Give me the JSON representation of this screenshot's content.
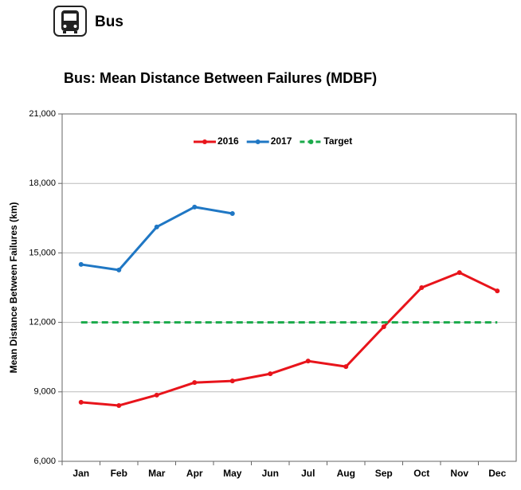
{
  "header": {
    "title": "Bus"
  },
  "chart_data": {
    "type": "line",
    "title": "Bus: Mean Distance Between Failures (MDBF)",
    "y_label": "Mean Distance Between Failures (km)",
    "categories": [
      "Jan",
      "Feb",
      "Mar",
      "Apr",
      "May",
      "Jun",
      "Jul",
      "Aug",
      "Sep",
      "Oct",
      "Nov",
      "Dec"
    ],
    "series": [
      {
        "name": "2016",
        "color": "#e8141b",
        "line_style": "solid",
        "markers": true,
        "values": [
          8550,
          8410,
          8860,
          9400,
          9470,
          9780,
          10330,
          10090,
          11810,
          13500,
          14150,
          13360
        ]
      },
      {
        "name": "2017",
        "color": "#1f77c4",
        "line_style": "solid",
        "markers": true,
        "values": [
          14500,
          14260,
          16120,
          16980,
          16700,
          null,
          null,
          null,
          null,
          null,
          null,
          null
        ]
      },
      {
        "name": "Target",
        "color": "#1aaa4a",
        "line_style": "dashed",
        "markers": false,
        "values": [
          12000,
          12000,
          12000,
          12000,
          12000,
          12000,
          12000,
          12000,
          12000,
          12000,
          12000,
          12000
        ]
      }
    ],
    "ylim": [
      6000,
      21000
    ],
    "yticks": [
      {
        "value": 6000,
        "label": "6,000"
      },
      {
        "value": 9000,
        "label": "9,000"
      },
      {
        "value": 12000,
        "label": "12,000"
      },
      {
        "value": 15000,
        "label": "15,000"
      },
      {
        "value": 18000,
        "label": "18,000"
      },
      {
        "value": 21000,
        "label": "21,000"
      }
    ],
    "grid": true,
    "legend": "top"
  }
}
